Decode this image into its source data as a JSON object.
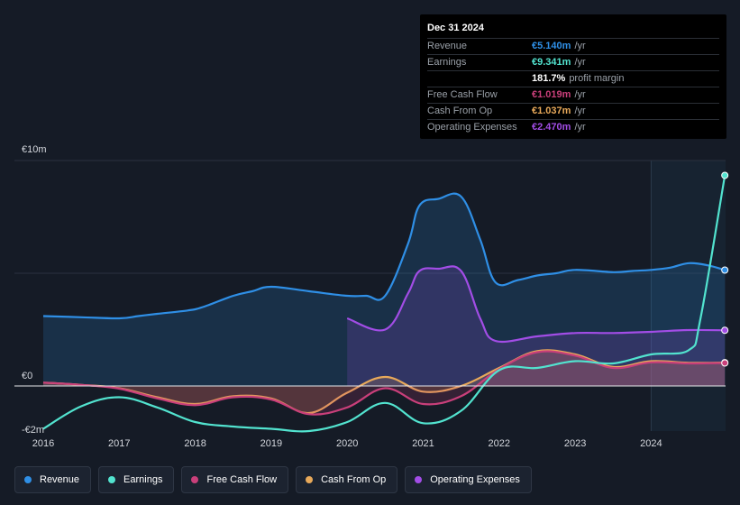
{
  "chart_data": {
    "type": "area",
    "currency_unit": "€m",
    "y_axis_labels": [
      {
        "value": 10,
        "text": "€10m"
      },
      {
        "value": 0,
        "text": "€0"
      },
      {
        "value": -2,
        "text": "-€2m"
      }
    ],
    "ylim": [
      -2,
      10
    ],
    "xlim": [
      2015.99,
      2024.97
    ],
    "x_ticks": [
      {
        "value": 2016,
        "label": "2016"
      },
      {
        "value": 2017,
        "label": "2017"
      },
      {
        "value": 2018,
        "label": "2018"
      },
      {
        "value": 2019,
        "label": "2019"
      },
      {
        "value": 2020,
        "label": "2020"
      },
      {
        "value": 2021,
        "label": "2021"
      },
      {
        "value": 2022,
        "label": "2022"
      },
      {
        "value": 2023,
        "label": "2023"
      },
      {
        "value": 2024,
        "label": "2024"
      }
    ],
    "highlight_start": 2024.0,
    "series": [
      {
        "name": "Revenue",
        "color": "#2f8fe6",
        "fill": true,
        "x": [
          2016.0,
          2016.5,
          2017.0,
          2017.25,
          2017.5,
          2017.9,
          2018.1,
          2018.5,
          2018.75,
          2019.0,
          2019.5,
          2020.0,
          2020.25,
          2020.5,
          2020.8,
          2020.95,
          2021.2,
          2021.5,
          2021.75,
          2021.95,
          2022.25,
          2022.5,
          2022.75,
          2023.0,
          2023.5,
          2023.75,
          2024.0,
          2024.25,
          2024.5,
          2024.75,
          2024.97
        ],
        "y": [
          3.1,
          3.05,
          3.0,
          3.1,
          3.2,
          3.35,
          3.5,
          4.0,
          4.2,
          4.4,
          4.2,
          4.0,
          4.0,
          4.0,
          6.3,
          8.0,
          8.3,
          8.4,
          6.5,
          4.6,
          4.7,
          4.9,
          5.0,
          5.15,
          5.05,
          5.1,
          5.15,
          5.25,
          5.45,
          5.35,
          5.14
        ]
      },
      {
        "name": "Operating Expenses",
        "color": "#a24de6",
        "fill": true,
        "x": [
          2020.0,
          2020.5,
          2020.8,
          2020.95,
          2021.2,
          2021.5,
          2021.75,
          2021.95,
          2022.5,
          2023.0,
          2023.5,
          2024.0,
          2024.5,
          2024.97
        ],
        "y": [
          3.0,
          2.5,
          4.1,
          5.1,
          5.2,
          5.1,
          3.0,
          2.0,
          2.2,
          2.35,
          2.35,
          2.4,
          2.48,
          2.47
        ]
      },
      {
        "name": "Cash From Op",
        "color": "#e8a95a",
        "fill": true,
        "x": [
          2016.0,
          2016.5,
          2017.0,
          2017.5,
          2018.0,
          2018.5,
          2019.0,
          2019.5,
          2020.0,
          2020.5,
          2021.0,
          2021.5,
          2022.0,
          2022.5,
          2023.0,
          2023.5,
          2024.0,
          2024.5,
          2024.97
        ],
        "y": [
          0.15,
          0.05,
          -0.1,
          -0.5,
          -0.8,
          -0.45,
          -0.55,
          -1.2,
          -0.3,
          0.4,
          -0.25,
          0.0,
          0.8,
          1.55,
          1.4,
          0.85,
          1.1,
          1.03,
          1.037
        ]
      },
      {
        "name": "Free Cash Flow",
        "color": "#c93f7a",
        "fill": true,
        "x": [
          2016.0,
          2016.5,
          2017.0,
          2017.5,
          2018.0,
          2018.5,
          2019.0,
          2019.5,
          2020.0,
          2020.5,
          2021.0,
          2021.5,
          2022.0,
          2022.5,
          2023.0,
          2023.5,
          2024.0,
          2024.5,
          2024.97
        ],
        "y": [
          0.15,
          0.05,
          -0.12,
          -0.55,
          -0.85,
          -0.5,
          -0.6,
          -1.25,
          -0.95,
          -0.1,
          -0.8,
          -0.45,
          0.75,
          1.5,
          1.35,
          0.8,
          1.05,
          1.0,
          1.019
        ]
      },
      {
        "name": "Earnings",
        "color": "#52e3cf",
        "fill": false,
        "x": [
          2016.0,
          2016.5,
          2017.0,
          2017.5,
          2018.0,
          2018.5,
          2019.0,
          2019.5,
          2020.0,
          2020.5,
          2021.0,
          2021.5,
          2022.0,
          2022.5,
          2023.0,
          2023.5,
          2024.0,
          2024.5,
          2024.65,
          2024.97
        ],
        "y": [
          -1.9,
          -0.9,
          -0.5,
          -0.95,
          -1.6,
          -1.8,
          -1.9,
          -2.0,
          -1.6,
          -0.75,
          -1.65,
          -1.1,
          0.7,
          0.8,
          1.1,
          1.0,
          1.4,
          1.6,
          3.0,
          9.341
        ]
      }
    ]
  },
  "tooltip": {
    "date": "Dec 31 2024",
    "rows": [
      {
        "label": "Revenue",
        "value": "€5.140m",
        "unit": "/yr",
        "color": "#2f8fe6"
      },
      {
        "label": "Earnings",
        "value": "€9.341m",
        "unit": "/yr",
        "color": "#52e3cf"
      },
      {
        "label": "",
        "value": "181.7%",
        "unit": "profit margin",
        "color": "#ffffff"
      },
      {
        "label": "Free Cash Flow",
        "value": "€1.019m",
        "unit": "/yr",
        "color": "#c93f7a"
      },
      {
        "label": "Cash From Op",
        "value": "€1.037m",
        "unit": "/yr",
        "color": "#e8a95a"
      },
      {
        "label": "Operating Expenses",
        "value": "€2.470m",
        "unit": "/yr",
        "color": "#a24de6"
      }
    ]
  },
  "legend": [
    {
      "label": "Revenue",
      "color": "#2f8fe6"
    },
    {
      "label": "Earnings",
      "color": "#52e3cf"
    },
    {
      "label": "Free Cash Flow",
      "color": "#c93f7a"
    },
    {
      "label": "Cash From Op",
      "color": "#e8a95a"
    },
    {
      "label": "Operating Expenses",
      "color": "#a24de6"
    }
  ]
}
